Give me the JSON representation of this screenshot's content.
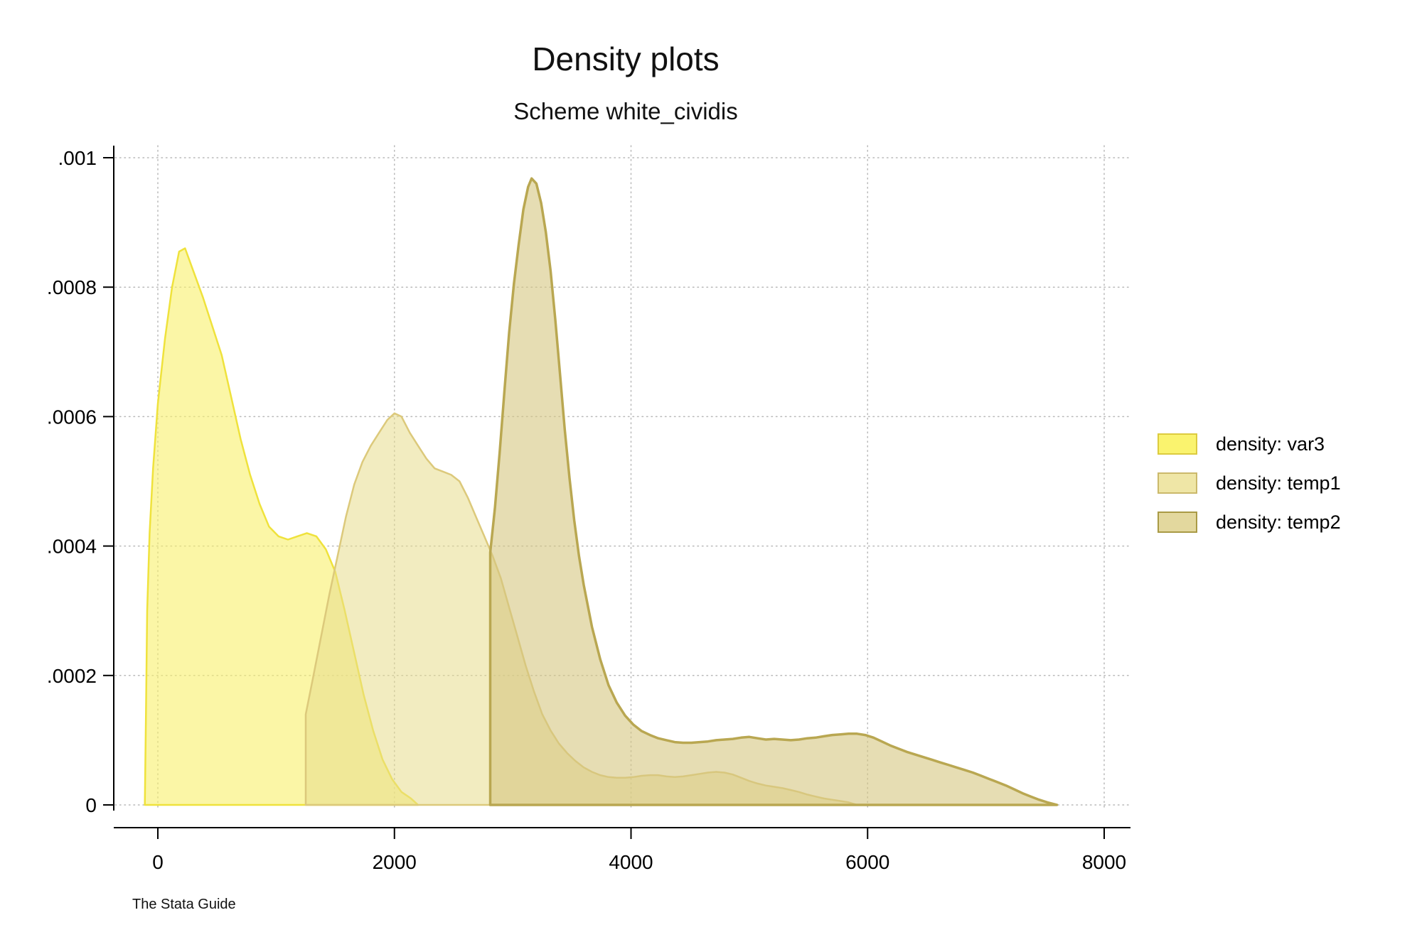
{
  "page": {
    "note": "The Stata Guide"
  },
  "chart_data": {
    "type": "area",
    "title": "Density plots",
    "subtitle": "Scheme white_cividis",
    "xlabel": "",
    "ylabel": "",
    "xlim": [
      0,
      8000
    ],
    "ylim": [
      0,
      0.001
    ],
    "grid": "dotted",
    "legend_position": "right",
    "x_ticks": [
      {
        "value": 0,
        "label": "0"
      },
      {
        "value": 2000,
        "label": "2000"
      },
      {
        "value": 4000,
        "label": "4000"
      },
      {
        "value": 6000,
        "label": "6000"
      },
      {
        "value": 8000,
        "label": "8000"
      }
    ],
    "y_ticks": [
      {
        "value": 0,
        "label": "0"
      },
      {
        "value": 0.0002,
        "label": ".0002"
      },
      {
        "value": 0.0004,
        "label": ".0004"
      },
      {
        "value": 0.0006,
        "label": ".0006"
      },
      {
        "value": 0.0008,
        "label": ".0008"
      },
      {
        "value": 0.001,
        "label": ".001"
      }
    ],
    "series": [
      {
        "name": "var3",
        "label": "density: var3",
        "stroke": "#efe23c",
        "stroke_width": 2.5,
        "fill": "rgba(249,240,107,0.60)",
        "swatch": "#faf36e",
        "swatch_border": "#dccb3f",
        "points": [
          [
            -110,
            0
          ],
          [
            -100,
            0.00015
          ],
          [
            -90,
            0.0003
          ],
          [
            -70,
            0.00042
          ],
          [
            -40,
            0.00052
          ],
          [
            0,
            0.00062
          ],
          [
            60,
            0.00072
          ],
          [
            120,
            0.0008
          ],
          [
            180,
            0.000855
          ],
          [
            230,
            0.00086
          ],
          [
            300,
            0.000825
          ],
          [
            380,
            0.000785
          ],
          [
            460,
            0.00074
          ],
          [
            540,
            0.000695
          ],
          [
            620,
            0.00063
          ],
          [
            700,
            0.000565
          ],
          [
            780,
            0.00051
          ],
          [
            860,
            0.000465
          ],
          [
            940,
            0.00043
          ],
          [
            1020,
            0.000415
          ],
          [
            1100,
            0.00041
          ],
          [
            1180,
            0.000415
          ],
          [
            1260,
            0.00042
          ],
          [
            1340,
            0.000415
          ],
          [
            1420,
            0.000395
          ],
          [
            1500,
            0.00036
          ],
          [
            1580,
            0.0003
          ],
          [
            1660,
            0.000235
          ],
          [
            1740,
            0.00017
          ],
          [
            1820,
            0.000115
          ],
          [
            1900,
            7e-05
          ],
          [
            1980,
            4e-05
          ],
          [
            2060,
            2e-05
          ],
          [
            2140,
            1e-05
          ],
          [
            2200,
            0
          ]
        ]
      },
      {
        "name": "temp1",
        "label": "density: temp1",
        "stroke": "#dcc97b",
        "stroke_width": 2.5,
        "fill": "rgba(232,220,140,0.55)",
        "swatch": "#efe6a6",
        "swatch_border": "#cbb96b",
        "points": [
          [
            1250,
            0
          ],
          [
            1250,
            0.00014
          ],
          [
            1310,
            0.000195
          ],
          [
            1380,
            0.00026
          ],
          [
            1450,
            0.000325
          ],
          [
            1520,
            0.000385
          ],
          [
            1590,
            0.000445
          ],
          [
            1660,
            0.000495
          ],
          [
            1730,
            0.00053
          ],
          [
            1800,
            0.000555
          ],
          [
            1870,
            0.000575
          ],
          [
            1940,
            0.000595
          ],
          [
            2000,
            0.000605
          ],
          [
            2060,
            0.0006
          ],
          [
            2130,
            0.000575
          ],
          [
            2200,
            0.000555
          ],
          [
            2270,
            0.000535
          ],
          [
            2340,
            0.00052
          ],
          [
            2410,
            0.000515
          ],
          [
            2480,
            0.00051
          ],
          [
            2550,
            0.0005
          ],
          [
            2620,
            0.000475
          ],
          [
            2690,
            0.000445
          ],
          [
            2760,
            0.000415
          ],
          [
            2830,
            0.000385
          ],
          [
            2900,
            0.00035
          ],
          [
            2970,
            0.000305
          ],
          [
            3040,
            0.00026
          ],
          [
            3110,
            0.000215
          ],
          [
            3180,
            0.000175
          ],
          [
            3250,
            0.00014
          ],
          [
            3320,
            0.000115
          ],
          [
            3390,
            9.5e-05
          ],
          [
            3460,
            8e-05
          ],
          [
            3530,
            6.8e-05
          ],
          [
            3600,
            5.8e-05
          ],
          [
            3670,
            5.1e-05
          ],
          [
            3740,
            4.6e-05
          ],
          [
            3810,
            4.3e-05
          ],
          [
            3880,
            4.2e-05
          ],
          [
            3950,
            4.2e-05
          ],
          [
            4020,
            4.3e-05
          ],
          [
            4090,
            4.5e-05
          ],
          [
            4160,
            4.6e-05
          ],
          [
            4230,
            4.6e-05
          ],
          [
            4300,
            4.4e-05
          ],
          [
            4370,
            4.3e-05
          ],
          [
            4440,
            4.4e-05
          ],
          [
            4510,
            4.6e-05
          ],
          [
            4580,
            4.8e-05
          ],
          [
            4650,
            5e-05
          ],
          [
            4720,
            5.1e-05
          ],
          [
            4790,
            5e-05
          ],
          [
            4860,
            4.7e-05
          ],
          [
            4930,
            4.2e-05
          ],
          [
            5000,
            3.7e-05
          ],
          [
            5070,
            3.3e-05
          ],
          [
            5140,
            3e-05
          ],
          [
            5210,
            2.8e-05
          ],
          [
            5280,
            2.6e-05
          ],
          [
            5350,
            2.3e-05
          ],
          [
            5420,
            2e-05
          ],
          [
            5490,
            1.6e-05
          ],
          [
            5560,
            1.3e-05
          ],
          [
            5630,
            1e-05
          ],
          [
            5700,
            8e-06
          ],
          [
            5770,
            6e-06
          ],
          [
            5840,
            4e-06
          ],
          [
            5910,
            0
          ]
        ]
      },
      {
        "name": "temp2",
        "label": "density: temp2",
        "stroke": "#b9a751",
        "stroke_width": 3.5,
        "fill": "rgba(214,199,128,0.60)",
        "swatch": "#e3d89e",
        "swatch_border": "#a99a45",
        "points": [
          [
            2810,
            0
          ],
          [
            2810,
            0.00039
          ],
          [
            2850,
            0.00046
          ],
          [
            2890,
            0.000545
          ],
          [
            2930,
            0.00064
          ],
          [
            2970,
            0.00073
          ],
          [
            3010,
            0.000805
          ],
          [
            3050,
            0.000865
          ],
          [
            3090,
            0.00092
          ],
          [
            3130,
            0.000955
          ],
          [
            3160,
            0.000968
          ],
          [
            3200,
            0.00096
          ],
          [
            3240,
            0.00093
          ],
          [
            3280,
            0.000885
          ],
          [
            3320,
            0.000825
          ],
          [
            3360,
            0.00075
          ],
          [
            3400,
            0.000665
          ],
          [
            3440,
            0.00058
          ],
          [
            3480,
            0.000505
          ],
          [
            3520,
            0.00044
          ],
          [
            3560,
            0.000385
          ],
          [
            3600,
            0.00034
          ],
          [
            3670,
            0.000275
          ],
          [
            3740,
            0.000225
          ],
          [
            3810,
            0.000185
          ],
          [
            3880,
            0.000158
          ],
          [
            3950,
            0.000138
          ],
          [
            4020,
            0.000124
          ],
          [
            4090,
            0.000114
          ],
          [
            4160,
            0.000108
          ],
          [
            4230,
            0.000103
          ],
          [
            4300,
            0.0001
          ],
          [
            4370,
            9.7e-05
          ],
          [
            4440,
            9.6e-05
          ],
          [
            4510,
            9.6e-05
          ],
          [
            4580,
            9.7e-05
          ],
          [
            4650,
            9.8e-05
          ],
          [
            4720,
            0.0001
          ],
          [
            4790,
            0.000101
          ],
          [
            4860,
            0.000102
          ],
          [
            4930,
            0.000104
          ],
          [
            5000,
            0.000105
          ],
          [
            5070,
            0.000103
          ],
          [
            5140,
            0.000101
          ],
          [
            5210,
            0.000102
          ],
          [
            5280,
            0.000101
          ],
          [
            5350,
            0.0001
          ],
          [
            5420,
            0.000101
          ],
          [
            5490,
            0.000103
          ],
          [
            5560,
            0.000104
          ],
          [
            5630,
            0.000106
          ],
          [
            5700,
            0.000108
          ],
          [
            5770,
            0.000109
          ],
          [
            5840,
            0.00011
          ],
          [
            5910,
            0.00011
          ],
          [
            5980,
            0.000108
          ],
          [
            6050,
            0.000104
          ],
          [
            6120,
            9.8e-05
          ],
          [
            6190,
            9.2e-05
          ],
          [
            6260,
            8.7e-05
          ],
          [
            6330,
            8.2e-05
          ],
          [
            6400,
            7.8e-05
          ],
          [
            6470,
            7.4e-05
          ],
          [
            6540,
            7e-05
          ],
          [
            6610,
            6.6e-05
          ],
          [
            6680,
            6.2e-05
          ],
          [
            6750,
            5.8e-05
          ],
          [
            6820,
            5.4e-05
          ],
          [
            6890,
            5e-05
          ],
          [
            6960,
            4.5e-05
          ],
          [
            7030,
            4e-05
          ],
          [
            7100,
            3.5e-05
          ],
          [
            7170,
            3e-05
          ],
          [
            7240,
            2.4e-05
          ],
          [
            7310,
            1.8e-05
          ],
          [
            7380,
            1.3e-05
          ],
          [
            7450,
            8e-06
          ],
          [
            7520,
            4e-06
          ],
          [
            7600,
            0
          ]
        ]
      }
    ]
  }
}
